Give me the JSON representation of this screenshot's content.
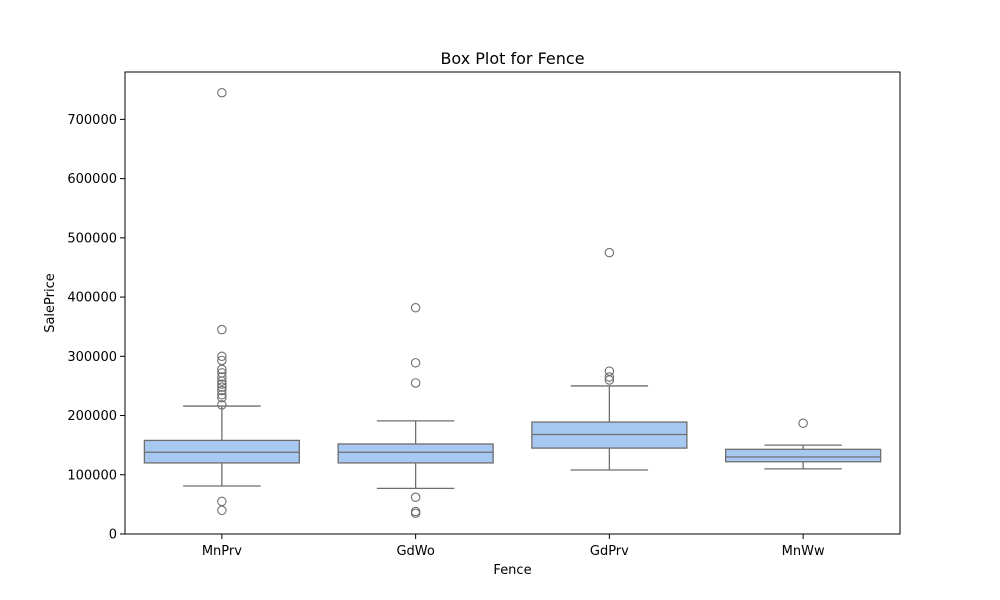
{
  "chart_data": {
    "type": "box",
    "title": "Box Plot for Fence",
    "xlabel": "Fence",
    "ylabel": "SalePrice",
    "ylim": [
      0,
      780000
    ],
    "y_ticks": [
      0,
      100000,
      200000,
      300000,
      400000,
      500000,
      600000,
      700000
    ],
    "y_tick_labels": [
      "0",
      "100000",
      "200000",
      "300000",
      "400000",
      "500000",
      "600000",
      "700000"
    ],
    "categories": [
      "MnPrv",
      "GdWo",
      "GdPrv",
      "MnWw"
    ],
    "box_color": "#a7c8f0",
    "line_color": "#6e6e6e",
    "boxes": [
      {
        "category": "MnPrv",
        "whisker_low": 81000,
        "q1": 120000,
        "median": 138000,
        "q3": 158000,
        "whisker_high": 216000,
        "outliers": [
          40000,
          55000,
          218000,
          230000,
          235000,
          242000,
          248000,
          253000,
          258000,
          265000,
          272000,
          278000,
          293000,
          300000,
          345000,
          745000
        ]
      },
      {
        "category": "GdWo",
        "whisker_low": 77000,
        "q1": 120000,
        "median": 138000,
        "q3": 152000,
        "whisker_high": 191000,
        "outliers": [
          35000,
          38000,
          62000,
          255000,
          289000,
          382000
        ]
      },
      {
        "category": "GdPrv",
        "whisker_low": 108000,
        "q1": 145000,
        "median": 168000,
        "q3": 189000,
        "whisker_high": 250000,
        "outliers": [
          260000,
          265000,
          275000,
          475000
        ]
      },
      {
        "category": "MnWw",
        "whisker_low": 110000,
        "q1": 122000,
        "median": 130000,
        "q3": 143000,
        "whisker_high": 150000,
        "outliers": [
          187000
        ]
      }
    ]
  }
}
